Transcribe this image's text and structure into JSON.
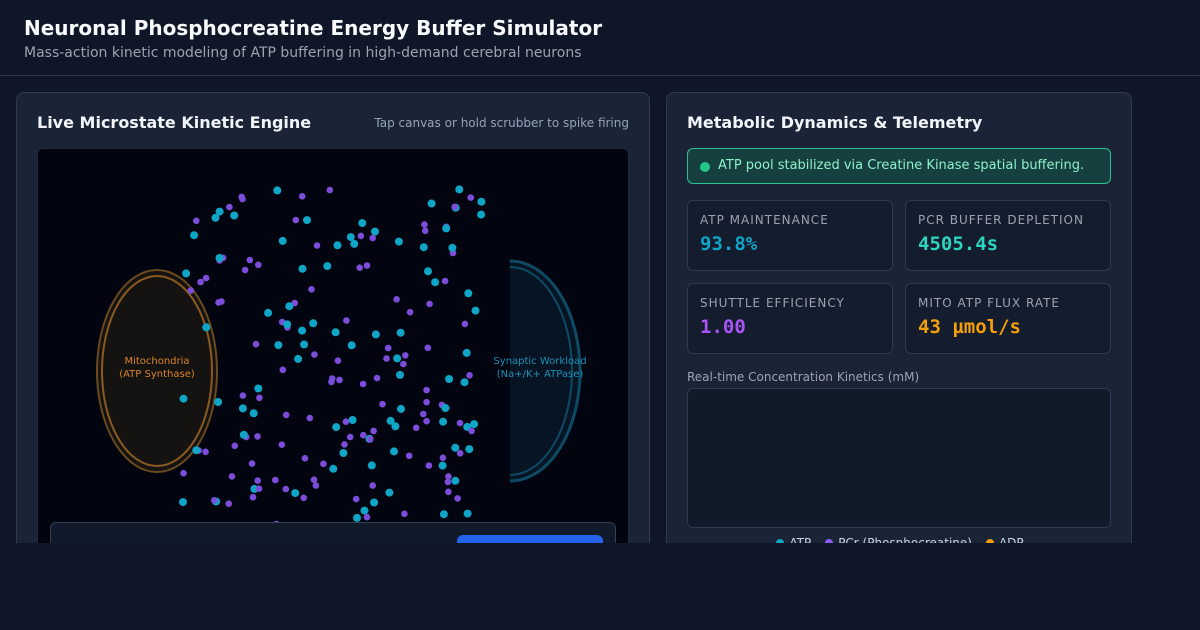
{
  "header": {
    "title": "Neuronal Phosphocreatine Energy Buffer Simulator",
    "subtitle": "Mass-action kinetic modeling of ATP buffering in high-demand cerebral neurons"
  },
  "simulation": {
    "title": "Live Microstate Kinetic Engine",
    "hint": "Tap canvas or hold scrubber to spike firing",
    "mitochondria_label": [
      "Mitochondria",
      "(ATP Synthase)"
    ],
    "synapse_label": [
      "Synaptic Workload",
      "(Na+/K+ ATPase)"
    ]
  },
  "telemetry": {
    "title": "Metabolic Dynamics & Telemetry",
    "status": "ATP pool stabilized via Creatine Kinase spatial buffering.",
    "metrics": [
      {
        "label": "ATP MAINTENANCE",
        "value": "93.8%"
      },
      {
        "label": "PCR BUFFER DEPLETION",
        "value": "4505.4s"
      },
      {
        "label": "SHUTTLE EFFICIENCY",
        "value": "1.00"
      },
      {
        "label": "MITO ATP FLUX RATE",
        "value": "43 µmol/s"
      }
    ],
    "chart_label": "Real-time Concentration Kinetics (mM)",
    "legend": [
      "ATP",
      "PCr (Phosphocreatine)",
      "ADP"
    ]
  }
}
